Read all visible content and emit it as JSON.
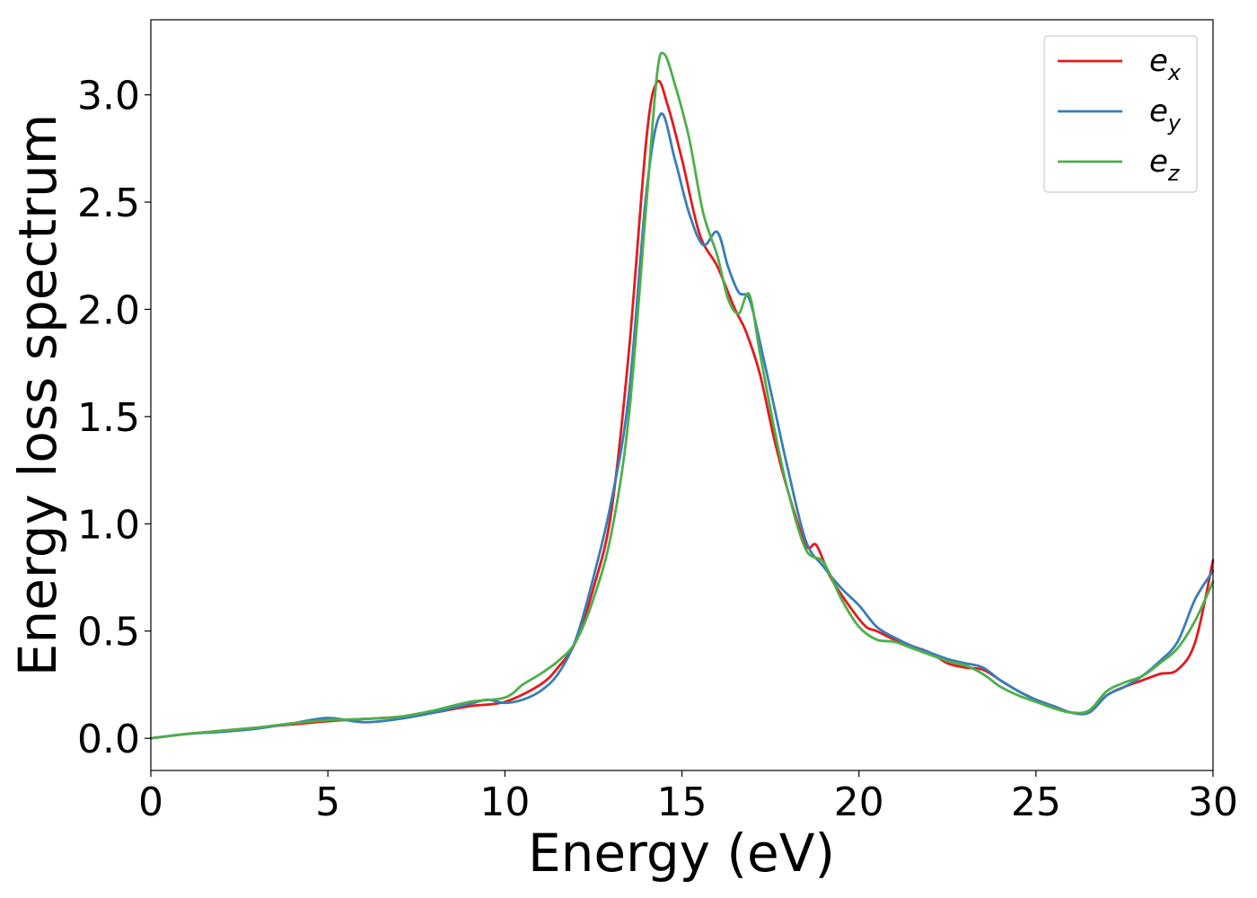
{
  "chart_data": {
    "type": "line",
    "xlabel": "Energy (eV)",
    "ylabel": "Energy loss spectrum",
    "xlim": [
      0,
      30
    ],
    "ylim": [
      -0.15,
      3.35
    ],
    "xticks": [
      0,
      5,
      10,
      15,
      20,
      25,
      30
    ],
    "xtick_labels": [
      "0",
      "5",
      "10",
      "15",
      "20",
      "25",
      "30"
    ],
    "yticks": [
      0.0,
      0.5,
      1.0,
      1.5,
      2.0,
      2.5,
      3.0
    ],
    "ytick_labels": [
      "0.0",
      "0.5",
      "1.0",
      "1.5",
      "2.0",
      "2.5",
      "3.0"
    ],
    "grid": false,
    "legend_position": "top-right",
    "series": [
      {
        "name": "e",
        "subscript": "x",
        "color": "#e41a1c",
        "points": [
          [
            0,
            0
          ],
          [
            1,
            0.02
          ],
          [
            2,
            0.035
          ],
          [
            3,
            0.05
          ],
          [
            4,
            0.065
          ],
          [
            5,
            0.08
          ],
          [
            6,
            0.09
          ],
          [
            7,
            0.1
          ],
          [
            8,
            0.12
          ],
          [
            9,
            0.15
          ],
          [
            10,
            0.17
          ],
          [
            11,
            0.25
          ],
          [
            11.5,
            0.33
          ],
          [
            12,
            0.45
          ],
          [
            12.5,
            0.7
          ],
          [
            13,
            1.05
          ],
          [
            13.5,
            1.8
          ],
          [
            14,
            2.8
          ],
          [
            14.3,
            3.06
          ],
          [
            14.6,
            2.95
          ],
          [
            15,
            2.7
          ],
          [
            15.5,
            2.35
          ],
          [
            16,
            2.2
          ],
          [
            16.5,
            2.0
          ],
          [
            16.8,
            1.9
          ],
          [
            17.2,
            1.7
          ],
          [
            17.6,
            1.4
          ],
          [
            18,
            1.15
          ],
          [
            18.5,
            0.9
          ],
          [
            18.8,
            0.9
          ],
          [
            19.2,
            0.75
          ],
          [
            19.8,
            0.6
          ],
          [
            20.2,
            0.52
          ],
          [
            20.5,
            0.5
          ],
          [
            21,
            0.46
          ],
          [
            21.5,
            0.43
          ],
          [
            22,
            0.4
          ],
          [
            22.5,
            0.35
          ],
          [
            23,
            0.33
          ],
          [
            23.5,
            0.32
          ],
          [
            24,
            0.27
          ],
          [
            24.5,
            0.22
          ],
          [
            25,
            0.18
          ],
          [
            25.5,
            0.15
          ],
          [
            26,
            0.12
          ],
          [
            26.5,
            0.12
          ],
          [
            27,
            0.2
          ],
          [
            27.5,
            0.24
          ],
          [
            28,
            0.27
          ],
          [
            28.5,
            0.3
          ],
          [
            29,
            0.32
          ],
          [
            29.5,
            0.45
          ],
          [
            30,
            0.83
          ]
        ]
      },
      {
        "name": "e",
        "subscript": "y",
        "color": "#377eb8",
        "points": [
          [
            0,
            0
          ],
          [
            1,
            0.02
          ],
          [
            2,
            0.03
          ],
          [
            3,
            0.045
          ],
          [
            4,
            0.07
          ],
          [
            5,
            0.095
          ],
          [
            6,
            0.075
          ],
          [
            7,
            0.09
          ],
          [
            8,
            0.12
          ],
          [
            9,
            0.16
          ],
          [
            9.5,
            0.18
          ],
          [
            10,
            0.165
          ],
          [
            10.5,
            0.18
          ],
          [
            11,
            0.22
          ],
          [
            11.5,
            0.3
          ],
          [
            12,
            0.46
          ],
          [
            12.5,
            0.75
          ],
          [
            13,
            1.1
          ],
          [
            13.5,
            1.6
          ],
          [
            14,
            2.55
          ],
          [
            14.4,
            2.91
          ],
          [
            14.8,
            2.7
          ],
          [
            15.2,
            2.45
          ],
          [
            15.6,
            2.3
          ],
          [
            16,
            2.36
          ],
          [
            16.3,
            2.2
          ],
          [
            16.6,
            2.08
          ],
          [
            16.9,
            2.05
          ],
          [
            17.2,
            1.85
          ],
          [
            17.6,
            1.55
          ],
          [
            18,
            1.25
          ],
          [
            18.5,
            0.92
          ],
          [
            19,
            0.8
          ],
          [
            19.5,
            0.7
          ],
          [
            20,
            0.62
          ],
          [
            20.5,
            0.52
          ],
          [
            21,
            0.47
          ],
          [
            21.5,
            0.43
          ],
          [
            22,
            0.4
          ],
          [
            22.5,
            0.37
          ],
          [
            23,
            0.35
          ],
          [
            23.5,
            0.33
          ],
          [
            24,
            0.27
          ],
          [
            24.5,
            0.22
          ],
          [
            25,
            0.18
          ],
          [
            25.5,
            0.15
          ],
          [
            26,
            0.12
          ],
          [
            26.5,
            0.12
          ],
          [
            27,
            0.2
          ],
          [
            27.5,
            0.24
          ],
          [
            28,
            0.29
          ],
          [
            28.5,
            0.36
          ],
          [
            29,
            0.45
          ],
          [
            29.5,
            0.65
          ],
          [
            30,
            0.78
          ]
        ]
      },
      {
        "name": "e",
        "subscript": "z",
        "color": "#4daf4a",
        "points": [
          [
            0,
            0
          ],
          [
            1,
            0.02
          ],
          [
            2,
            0.035
          ],
          [
            3,
            0.05
          ],
          [
            4,
            0.07
          ],
          [
            5,
            0.085
          ],
          [
            6,
            0.09
          ],
          [
            7,
            0.1
          ],
          [
            8,
            0.13
          ],
          [
            9,
            0.17
          ],
          [
            10,
            0.19
          ],
          [
            10.5,
            0.25
          ],
          [
            11,
            0.3
          ],
          [
            11.5,
            0.36
          ],
          [
            12,
            0.45
          ],
          [
            12.5,
            0.65
          ],
          [
            13,
            0.95
          ],
          [
            13.5,
            1.5
          ],
          [
            14,
            2.5
          ],
          [
            14.3,
            3.1
          ],
          [
            14.5,
            3.19
          ],
          [
            14.8,
            3.05
          ],
          [
            15.2,
            2.8
          ],
          [
            15.6,
            2.45
          ],
          [
            16,
            2.25
          ],
          [
            16.3,
            2.05
          ],
          [
            16.6,
            1.98
          ],
          [
            16.9,
            2.07
          ],
          [
            17.2,
            1.8
          ],
          [
            17.6,
            1.45
          ],
          [
            18,
            1.15
          ],
          [
            18.5,
            0.88
          ],
          [
            19,
            0.82
          ],
          [
            19.5,
            0.65
          ],
          [
            20,
            0.52
          ],
          [
            20.5,
            0.46
          ],
          [
            21,
            0.45
          ],
          [
            21.5,
            0.42
          ],
          [
            22,
            0.39
          ],
          [
            22.5,
            0.36
          ],
          [
            23,
            0.34
          ],
          [
            23.5,
            0.3
          ],
          [
            24,
            0.24
          ],
          [
            24.5,
            0.2
          ],
          [
            25,
            0.17
          ],
          [
            25.5,
            0.14
          ],
          [
            26,
            0.12
          ],
          [
            26.5,
            0.13
          ],
          [
            27,
            0.22
          ],
          [
            27.5,
            0.26
          ],
          [
            28,
            0.29
          ],
          [
            28.5,
            0.35
          ],
          [
            29,
            0.42
          ],
          [
            29.5,
            0.55
          ],
          [
            30,
            0.73
          ]
        ]
      }
    ]
  }
}
